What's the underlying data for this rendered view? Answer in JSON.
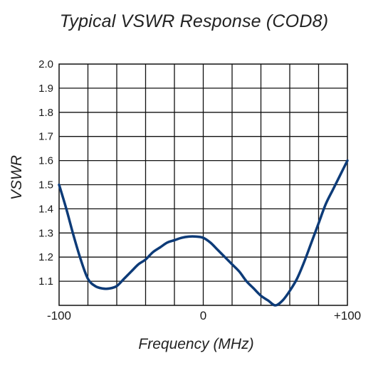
{
  "chart_data": {
    "type": "line",
    "title": "Typical VSWR Response (COD8)",
    "xlabel": "Frequency (MHz)",
    "ylabel": "VSWR",
    "xlim": [
      -100,
      100
    ],
    "ylim": [
      1.0,
      2.0
    ],
    "x_ticks": [
      {
        "value": -100,
        "label": "-100"
      },
      {
        "value": 0,
        "label": "0"
      },
      {
        "value": 100,
        "label": "+100"
      }
    ],
    "y_ticks": [
      {
        "value": 1.1,
        "label": "1.1"
      },
      {
        "value": 1.2,
        "label": "1.2"
      },
      {
        "value": 1.3,
        "label": "1.3"
      },
      {
        "value": 1.4,
        "label": "1.4"
      },
      {
        "value": 1.5,
        "label": "1.5"
      },
      {
        "value": 1.6,
        "label": "1.6"
      },
      {
        "value": 1.7,
        "label": "1.7"
      },
      {
        "value": 1.8,
        "label": "1.8"
      },
      {
        "value": 1.9,
        "label": "1.9"
      },
      {
        "value": 2.0,
        "label": "2.0"
      }
    ],
    "x_grid_step": 20,
    "y_grid_step": 0.1,
    "grid": true,
    "line_color": "#0d3b78",
    "series": [
      {
        "x": [
          -100,
          -95,
          -90,
          -85,
          -80,
          -75,
          -70,
          -65,
          -60,
          -55,
          -50,
          -45,
          -40,
          -35,
          -30,
          -25,
          -20,
          -15,
          -10,
          -5,
          0,
          5,
          10,
          15,
          20,
          25,
          30,
          35,
          40,
          45,
          50,
          55,
          60,
          65,
          70,
          75,
          80,
          85,
          90,
          95,
          100
        ],
        "y": [
          1.5,
          1.4,
          1.29,
          1.19,
          1.11,
          1.08,
          1.07,
          1.07,
          1.08,
          1.11,
          1.14,
          1.17,
          1.19,
          1.22,
          1.24,
          1.26,
          1.27,
          1.28,
          1.285,
          1.285,
          1.28,
          1.26,
          1.23,
          1.2,
          1.17,
          1.14,
          1.1,
          1.07,
          1.04,
          1.02,
          1.0,
          1.02,
          1.06,
          1.11,
          1.18,
          1.26,
          1.34,
          1.42,
          1.48,
          1.54,
          1.6
        ]
      }
    ]
  }
}
